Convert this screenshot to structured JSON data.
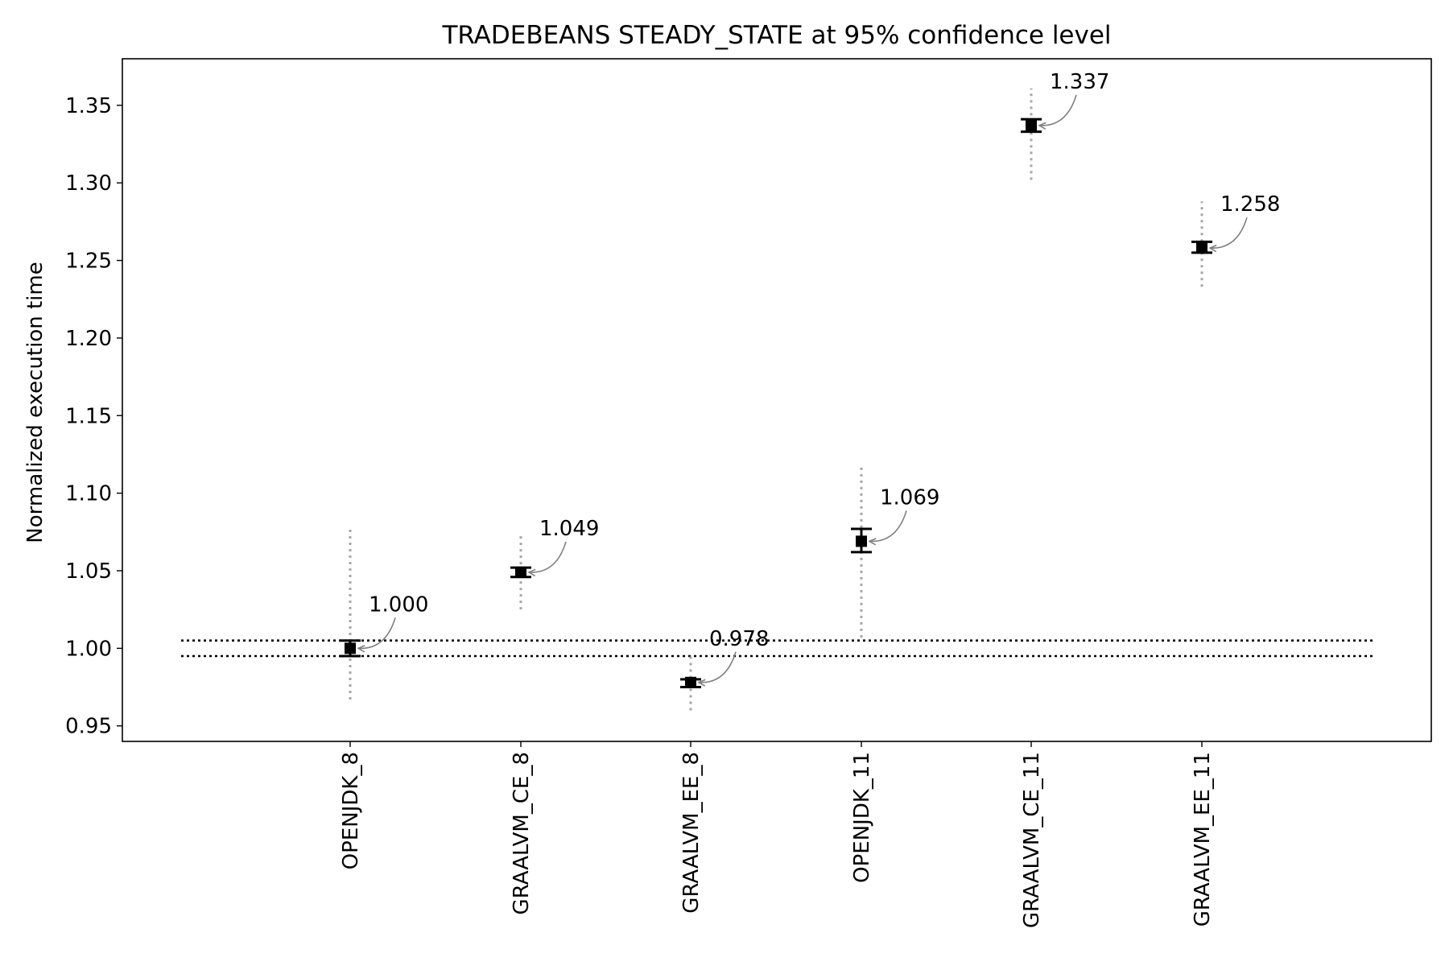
{
  "chart_data": {
    "type": "scatter",
    "title": "TRADEBEANS STEADY_STATE at 95% confidence level",
    "xlabel": "",
    "ylabel": "Normalized execution time",
    "categories": [
      "OPENJDK_8",
      "GRAALVM_CE_8",
      "GRAALVM_EE_8",
      "OPENJDK_11",
      "GRAALVM_CE_11",
      "GRAALVM_EE_11"
    ],
    "values": [
      1.0,
      1.049,
      0.978,
      1.069,
      1.337,
      1.258
    ],
    "ci_low": [
      0.995,
      1.046,
      0.975,
      1.062,
      1.333,
      1.255
    ],
    "ci_high": [
      1.005,
      1.052,
      0.98,
      1.077,
      1.341,
      1.262
    ],
    "range_low": [
      0.967,
      1.025,
      0.96,
      1.007,
      1.302,
      1.233
    ],
    "range_high": [
      1.078,
      1.073,
      0.997,
      1.119,
      1.361,
      1.288
    ],
    "annotations": [
      "1.000",
      "1.049",
      "0.978",
      "1.069",
      "1.337",
      "1.258"
    ],
    "reference_band": [
      0.995,
      1.005
    ],
    "ylim": [
      0.94,
      1.38
    ],
    "yticks": [
      0.95,
      1.0,
      1.05,
      1.1,
      1.15,
      1.2,
      1.25,
      1.3,
      1.35
    ],
    "ytick_labels": [
      "0.95",
      "1.00",
      "1.05",
      "1.10",
      "1.15",
      "1.20",
      "1.25",
      "1.30",
      "1.35"
    ],
    "grid": false,
    "colors": {
      "marker": "#000000",
      "range": "#a6a6a6",
      "arrow": "#808080",
      "reference": "#000000"
    }
  }
}
